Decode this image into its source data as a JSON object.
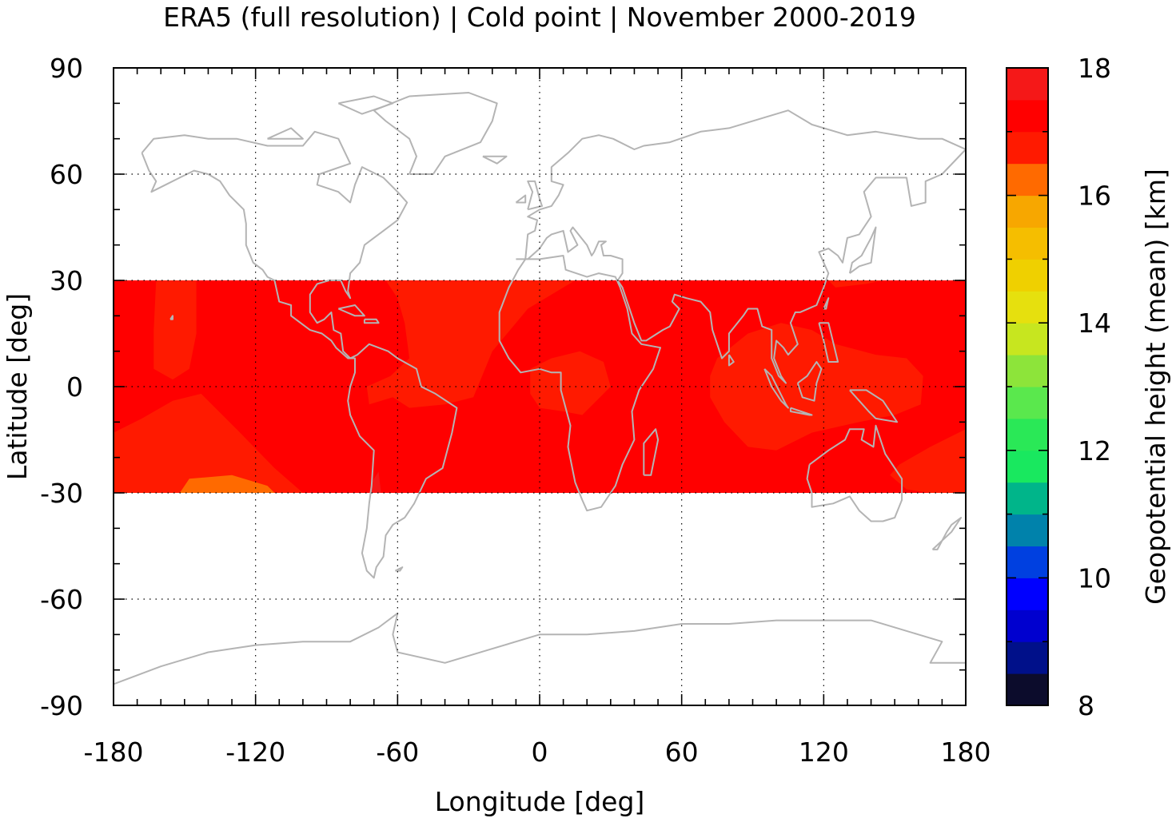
{
  "chart_data": {
    "type": "heatmap",
    "title": "ERA5 (full resolution) | Cold point | November 2000-2019",
    "xlabel": "Longitude [deg]",
    "ylabel": "Latitude [deg]",
    "xlim": [
      -180,
      180
    ],
    "ylim": [
      -90,
      90
    ],
    "xticks": [
      "-180",
      "-120",
      "-60",
      "0",
      "60",
      "120",
      "180"
    ],
    "yticks": [
      "-90",
      "-60",
      "-30",
      "0",
      "30",
      "60",
      "90"
    ],
    "grid": true,
    "data_band_lat": [
      -30,
      30
    ],
    "background_level_km": [
      17,
      17.5
    ],
    "regions": [
      {
        "level_km": [
          16.5,
          17.0
        ],
        "outline": [
          [
            -162,
            30
          ],
          [
            -145,
            30
          ],
          [
            -145,
            15
          ],
          [
            -148,
            5
          ],
          [
            -155,
            2
          ],
          [
            -163,
            5
          ],
          [
            -163,
            16
          ]
        ]
      },
      {
        "level_km": [
          16.5,
          17.0
        ],
        "outline": [
          [
            -180,
            -13
          ],
          [
            -168,
            -9
          ],
          [
            -155,
            -4
          ],
          [
            -143,
            -2
          ],
          [
            -128,
            -12
          ],
          [
            -112,
            -23
          ],
          [
            -100,
            -30
          ],
          [
            -180,
            -30
          ]
        ]
      },
      {
        "level_km": [
          16.0,
          16.5
        ],
        "outline": [
          [
            -148,
            -26
          ],
          [
            -130,
            -25
          ],
          [
            -115,
            -28
          ],
          [
            -112,
            -30
          ],
          [
            -152,
            -30
          ]
        ]
      },
      {
        "level_km": [
          16.5,
          17.0
        ],
        "outline": [
          [
            -65,
            30
          ],
          [
            15,
            30
          ],
          [
            -5,
            22
          ],
          [
            -20,
            10
          ],
          [
            -28,
            -3
          ],
          [
            -40,
            -5
          ],
          [
            -55,
            -6
          ],
          [
            -62,
            -3
          ],
          [
            -72,
            -5
          ],
          [
            -73,
            0
          ],
          [
            -63,
            3
          ],
          [
            -55,
            8
          ],
          [
            -57,
            18
          ],
          [
            -60,
            25
          ]
        ]
      },
      {
        "level_km": [
          16.5,
          17.0
        ],
        "outline": [
          [
            -4,
            5
          ],
          [
            5,
            8
          ],
          [
            17,
            10
          ],
          [
            27,
            7
          ],
          [
            30,
            0
          ],
          [
            24,
            -4
          ],
          [
            18,
            -8
          ],
          [
            10,
            -7
          ],
          [
            0,
            -6
          ],
          [
            -4,
            -2
          ]
        ]
      },
      {
        "level_km": [
          16.5,
          17.0
        ],
        "outline": [
          [
            75,
            8
          ],
          [
            88,
            15
          ],
          [
            102,
            18
          ],
          [
            115,
            16
          ],
          [
            125,
            12
          ],
          [
            142,
            9
          ],
          [
            155,
            8
          ],
          [
            162,
            3
          ],
          [
            161,
            -5
          ],
          [
            150,
            -8
          ],
          [
            135,
            -10
          ],
          [
            115,
            -13
          ],
          [
            100,
            -18
          ],
          [
            88,
            -17
          ],
          [
            78,
            -10
          ],
          [
            72,
            -3
          ],
          [
            72,
            3
          ]
        ]
      },
      {
        "level_km": [
          16.5,
          17.0
        ],
        "outline": [
          [
            180,
            -12
          ],
          [
            165,
            -17
          ],
          [
            152,
            -22
          ],
          [
            148,
            -25
          ],
          [
            155,
            -29
          ],
          [
            165,
            -30
          ],
          [
            180,
            -30
          ]
        ]
      },
      {
        "level_km": [
          16.5,
          17.0
        ],
        "outline": [
          [
            122,
            30
          ],
          [
            145,
            30
          ],
          [
            138,
            29
          ],
          [
            125,
            28
          ]
        ]
      },
      {
        "level_km": [
          17.5,
          18.0
        ],
        "outline": [
          [
            -72,
            -30
          ],
          [
            -67,
            -30
          ],
          [
            -68,
            -24
          ],
          [
            -71,
            -27
          ]
        ]
      }
    ],
    "colorbar": {
      "label": "Geopotential height (mean) [km]",
      "range": [
        8,
        18
      ],
      "step": 0.5,
      "ticks": [
        "8",
        "10",
        "12",
        "14",
        "16",
        "18"
      ],
      "colors": [
        "#0c0c2c",
        "#00108a",
        "#0000cf",
        "#0000ff",
        "#0040e0",
        "#0082ab",
        "#00b58a",
        "#19e85f",
        "#2ae857",
        "#5ae84d",
        "#8de43a",
        "#c7e61f",
        "#e6e00e",
        "#efd000",
        "#f5be00",
        "#f7a700",
        "#ff6a00",
        "#ff1a00",
        "#ff0000",
        "#f51818",
        "#ef3030",
        "#f67f7f",
        "#ffcaca"
      ]
    },
    "colors": {
      "coastline": "#b4b4b4",
      "grid": "#000000"
    }
  }
}
